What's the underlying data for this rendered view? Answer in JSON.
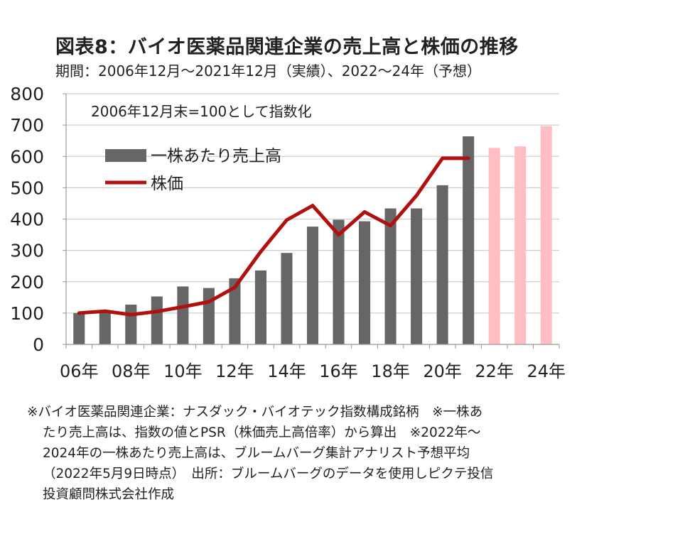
{
  "title": "図表8：バイオ医薬品関連企業の売上高と株価の推移",
  "subtitle": "期間：2006年12月～2021年12月（実績）、2022～24年（予想）",
  "chart_data": {
    "type": "bar",
    "annotation": "2006年12月末=100として指数化",
    "ylim": [
      0,
      800
    ],
    "y_ticks": [
      "0",
      "100",
      "200",
      "300",
      "400",
      "500",
      "600",
      "700",
      "800"
    ],
    "x_tick_labels": [
      "06年",
      "08年",
      "10年",
      "12年",
      "14年",
      "16年",
      "18年",
      "20年",
      "22年",
      "24年"
    ],
    "categories": [
      "2006",
      "2007",
      "2008",
      "2009",
      "2010",
      "2011",
      "2012",
      "2013",
      "2014",
      "2015",
      "2016",
      "2017",
      "2018",
      "2019",
      "2020",
      "2021",
      "2022",
      "2023",
      "2024"
    ],
    "series": [
      {
        "name": "一株あたり売上高",
        "kind": "bar",
        "color": "#666666",
        "forecast_color": "#ffbdc4",
        "forecast_from_index": 16,
        "values": [
          100,
          107,
          127,
          153,
          185,
          180,
          211,
          236,
          292,
          376,
          398,
          393,
          434,
          434,
          508,
          664,
          627,
          632,
          697
        ]
      },
      {
        "name": "株価",
        "kind": "line",
        "color": "#b01010",
        "values": [
          100,
          106,
          95,
          105,
          120,
          136,
          182,
          296,
          397,
          443,
          350,
          423,
          379,
          475,
          594,
          594,
          null,
          null,
          null
        ]
      }
    ],
    "legend_position": "top-left",
    "grid": true
  },
  "notes": [
    "※バイオ医薬品関連企業：ナスダック・バイオテック指数構成銘柄　※一株あ",
    "たり売上高は、指数の値とPSR（株価売上高倍率）から算出　※2022年～",
    "2024年の一株あたり売上高は、ブルームバーグ集計アナリスト予想平均",
    "（2022年5月9日時点）　出所：ブルームバーグのデータを使用しピクテ投信",
    "投資顧問株式会社作成"
  ]
}
